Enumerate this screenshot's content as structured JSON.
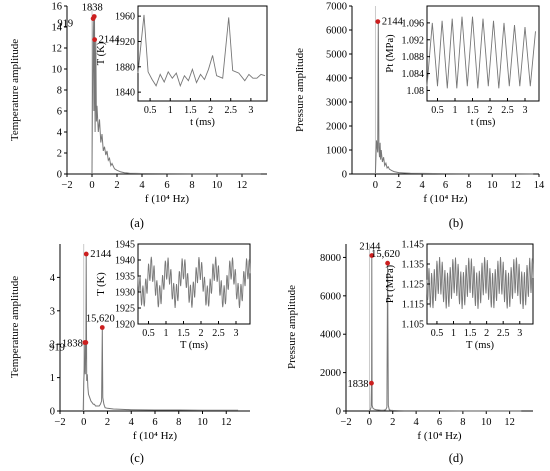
{
  "chart_data": [
    {
      "id": "a",
      "type": "line",
      "panel_label": "(a)",
      "xlabel": "f (10⁴ Hz)",
      "ylabel": "Temperature amplitude",
      "xlim": [
        -2,
        14
      ],
      "ylim": [
        0,
        16
      ],
      "xticks": [
        -2,
        0,
        2,
        4,
        6,
        8,
        10,
        12
      ],
      "yticks": [
        0,
        2,
        4,
        6,
        8,
        10,
        12,
        14,
        16
      ],
      "series": [
        {
          "x": [
            0,
            0.05,
            0.1,
            0.15,
            0.2,
            0.25,
            0.3,
            0.35,
            0.4,
            0.5,
            0.6,
            0.7,
            0.8,
            0.9,
            1.0,
            1.1,
            1.2,
            1.3,
            1.4,
            1.5,
            1.6,
            1.8,
            2.0,
            2.3,
            2.6,
            3.0,
            4,
            6,
            8,
            10,
            13.5
          ],
          "y": [
            0,
            9.5,
            14.8,
            6.0,
            15.0,
            4.0,
            12.8,
            5.0,
            6.5,
            4.0,
            5.2,
            3.0,
            3.8,
            2.2,
            2.6,
            1.8,
            2.2,
            1.3,
            1.5,
            0.8,
            1.0,
            0.5,
            0.35,
            0.2,
            0.12,
            0.08,
            0.05,
            0.04,
            0.03,
            0.03,
            0.02
          ]
        }
      ],
      "markers": [
        {
          "label": "919",
          "x": 0.09,
          "y": 14.8
        },
        {
          "label": "1838",
          "x": 0.18,
          "y": 15.0
        },
        {
          "label": "2144",
          "x": 0.21,
          "y": 12.8
        }
      ],
      "inset": {
        "xlabel": "t (ms)",
        "ylabel": "T (K)",
        "xlim": [
          0.2,
          3.4
        ],
        "ylim": [
          1826,
          1976
        ],
        "xticks": [
          0.5,
          1,
          1.5,
          2,
          2.5,
          3
        ],
        "xticklabels": [
          "0.5",
          "1",
          "1.5",
          "2",
          "2.5",
          "3"
        ],
        "yticks": [
          1840,
          1880,
          1920,
          1960
        ],
        "x": [
          0.2,
          0.35,
          0.45,
          0.55,
          0.65,
          0.75,
          0.85,
          0.95,
          1.05,
          1.15,
          1.25,
          1.35,
          1.45,
          1.55,
          1.65,
          1.75,
          1.85,
          1.95,
          2.05,
          2.15,
          2.3,
          2.45,
          2.55,
          2.7,
          2.85,
          2.95,
          3.05,
          3.15,
          3.25,
          3.35
        ],
        "y": [
          1870,
          1962,
          1872,
          1860,
          1850,
          1868,
          1856,
          1872,
          1862,
          1870,
          1850,
          1866,
          1858,
          1876,
          1855,
          1868,
          1860,
          1876,
          1898,
          1866,
          1862,
          1958,
          1874,
          1870,
          1858,
          1868,
          1862,
          1862,
          1868,
          1866
        ]
      }
    },
    {
      "id": "b",
      "type": "line",
      "panel_label": "(b)",
      "xlabel": "f (10⁴ Hz)",
      "ylabel": "Pressure amplitude",
      "xlim": [
        -2,
        14
      ],
      "ylim": [
        0,
        7000
      ],
      "xticks": [
        0,
        2,
        4,
        6,
        8,
        10,
        12,
        14
      ],
      "yticks": [
        0,
        1000,
        2000,
        3000,
        4000,
        5000,
        6000,
        7000
      ],
      "series": [
        {
          "x": [
            0,
            0.1,
            0.2,
            0.25,
            0.3,
            0.35,
            0.4,
            0.45,
            0.5,
            0.6,
            0.7,
            0.8,
            0.9,
            1.0,
            1.1,
            1.2,
            1.4,
            1.6,
            1.8,
            2.0,
            2.5,
            3.0,
            4,
            5,
            6,
            8,
            10,
            12,
            13.5
          ],
          "y": [
            0,
            1400,
            900,
            6350,
            1100,
            700,
            1300,
            600,
            1000,
            500,
            700,
            350,
            450,
            250,
            300,
            200,
            140,
            100,
            80,
            60,
            40,
            30,
            25,
            20,
            15,
            10,
            10,
            8,
            5
          ]
        }
      ],
      "markers": [
        {
          "label": "2144",
          "x": 0.21,
          "y": 6350
        }
      ],
      "inset": {
        "xlabel": "t (ms)",
        "ylabel": "Pt (MPa)",
        "xlim": [
          0.2,
          3.4
        ],
        "ylim": [
          1.0775,
          1.1
        ],
        "xticks": [
          0.5,
          1,
          1.5,
          2,
          2.5,
          3
        ],
        "xticklabels": [
          "0.5",
          "1",
          "1.5",
          "2",
          "2.5",
          "3"
        ],
        "yticks": [
          1.08,
          1.084,
          1.088,
          1.092,
          1.096
        ],
        "x": [
          0.2,
          0.35,
          0.5,
          0.63,
          0.78,
          0.92,
          1.05,
          1.2,
          1.35,
          1.5,
          1.65,
          1.8,
          1.95,
          2.1,
          2.25,
          2.4,
          2.55,
          2.7,
          2.85,
          3.0,
          3.15,
          3.3
        ],
        "y": [
          1.081,
          1.096,
          1.081,
          1.0965,
          1.0805,
          1.097,
          1.0805,
          1.0975,
          1.081,
          1.0975,
          1.0805,
          1.097,
          1.081,
          1.0965,
          1.0805,
          1.096,
          1.081,
          1.0955,
          1.081,
          1.095,
          1.081,
          1.094
        ]
      }
    },
    {
      "id": "c",
      "type": "line",
      "panel_label": "(c)",
      "xlabel": "f (10⁴ Hz)",
      "ylabel": "Temperature amplitude",
      "xlim": [
        -2,
        14
      ],
      "ylim": [
        0,
        5
      ],
      "xticks": [
        -2,
        0,
        2,
        4,
        6,
        8,
        10,
        12
      ],
      "yticks": [
        0,
        1,
        2,
        3,
        4
      ],
      "series": [
        {
          "x": [
            -0.05,
            0.0,
            0.05,
            0.09,
            0.13,
            0.18,
            0.21,
            0.25,
            0.3,
            0.35,
            0.4,
            0.5,
            0.6,
            0.7,
            0.8,
            0.9,
            1.0,
            1.1,
            1.2,
            1.3,
            1.4,
            1.5,
            1.56,
            1.6,
            1.7,
            1.8,
            2.0,
            2.5,
            3,
            4,
            6,
            8,
            10,
            13
          ],
          "y": [
            0,
            0.9,
            1.2,
            2.05,
            1.1,
            2.05,
            4.7,
            0.9,
            1.1,
            0.7,
            0.5,
            0.4,
            0.3,
            0.25,
            0.2,
            0.2,
            0.15,
            0.15,
            0.15,
            0.15,
            0.2,
            0.3,
            2.5,
            0.4,
            0.2,
            0.1,
            0.08,
            0.06,
            0.05,
            0.04,
            0.03,
            0.03,
            0.02,
            0.02
          ]
        }
      ],
      "markers": [
        {
          "label": "919",
          "x": 0.09,
          "y": 2.05
        },
        {
          "label": "1838",
          "x": 0.18,
          "y": 2.05
        },
        {
          "label": "2144",
          "x": 0.21,
          "y": 4.7
        },
        {
          "label": "15,620",
          "x": 1.56,
          "y": 2.5
        }
      ],
      "inset": {
        "xlabel": "T (ms)",
        "ylabel": "T (K)",
        "xlim": [
          0.2,
          3.4
        ],
        "ylim": [
          1920,
          1945
        ],
        "xticks": [
          0.5,
          1,
          1.5,
          2,
          2.5,
          3
        ],
        "xticklabels": [
          "0.5",
          "1",
          "1.5",
          "2",
          "2.5",
          "3"
        ],
        "yticks": [
          1920,
          1925,
          1930,
          1935,
          1940,
          1945
        ],
        "osc": {
          "base": 1933,
          "slow_amp": 4.5,
          "slow_period": 0.46,
          "fast_amp": 3.5,
          "fast_period": 0.08
        }
      }
    },
    {
      "id": "d",
      "type": "line",
      "panel_label": "(d)",
      "xlabel": "f (10⁴ Hz)",
      "ylabel": "Pressure amplitude",
      "xlim": [
        -2,
        14
      ],
      "ylim": [
        0,
        8700
      ],
      "xticks": [
        -2,
        0,
        2,
        4,
        6,
        8,
        10,
        12
      ],
      "yticks": [
        0,
        2000,
        4000,
        6000,
        8000
      ],
      "series": [
        {
          "x": [
            0,
            0.1,
            0.15,
            0.18,
            0.19,
            0.21,
            0.23,
            0.3,
            0.4,
            0.5,
            0.6,
            0.8,
            1.0,
            1.2,
            1.4,
            1.5,
            1.56,
            1.62,
            1.7,
            1.8,
            2.0,
            2.5,
            3,
            4,
            6,
            8,
            10,
            13
          ],
          "y": [
            0,
            100,
            200,
            1450,
            300,
            8100,
            300,
            150,
            100,
            80,
            60,
            50,
            40,
            40,
            60,
            200,
            7700,
            300,
            80,
            40,
            30,
            20,
            15,
            10,
            8,
            6,
            5,
            4
          ]
        }
      ],
      "markers": [
        {
          "label": "1838",
          "x": 0.18,
          "y": 1450
        },
        {
          "label": "2144",
          "x": 0.21,
          "y": 8100
        },
        {
          "label": "15,620",
          "x": 1.56,
          "y": 7700
        }
      ],
      "inset": {
        "xlabel": "T (ms)",
        "ylabel": "Pt (MPa)",
        "xlim": [
          0.2,
          3.4
        ],
        "ylim": [
          1.105,
          1.145
        ],
        "xticks": [
          0.5,
          1,
          1.5,
          2,
          2.5,
          3
        ],
        "xticklabels": [
          "0.5",
          "1",
          "1.5",
          "2",
          "2.5",
          "3"
        ],
        "yticks": [
          1.105,
          1.115,
          1.125,
          1.135,
          1.145
        ],
        "osc": {
          "base": 1.1255,
          "slow_amp": 0.004,
          "slow_period": 0.46,
          "fast_amp": 0.009,
          "fast_period": 0.08
        }
      }
    }
  ]
}
